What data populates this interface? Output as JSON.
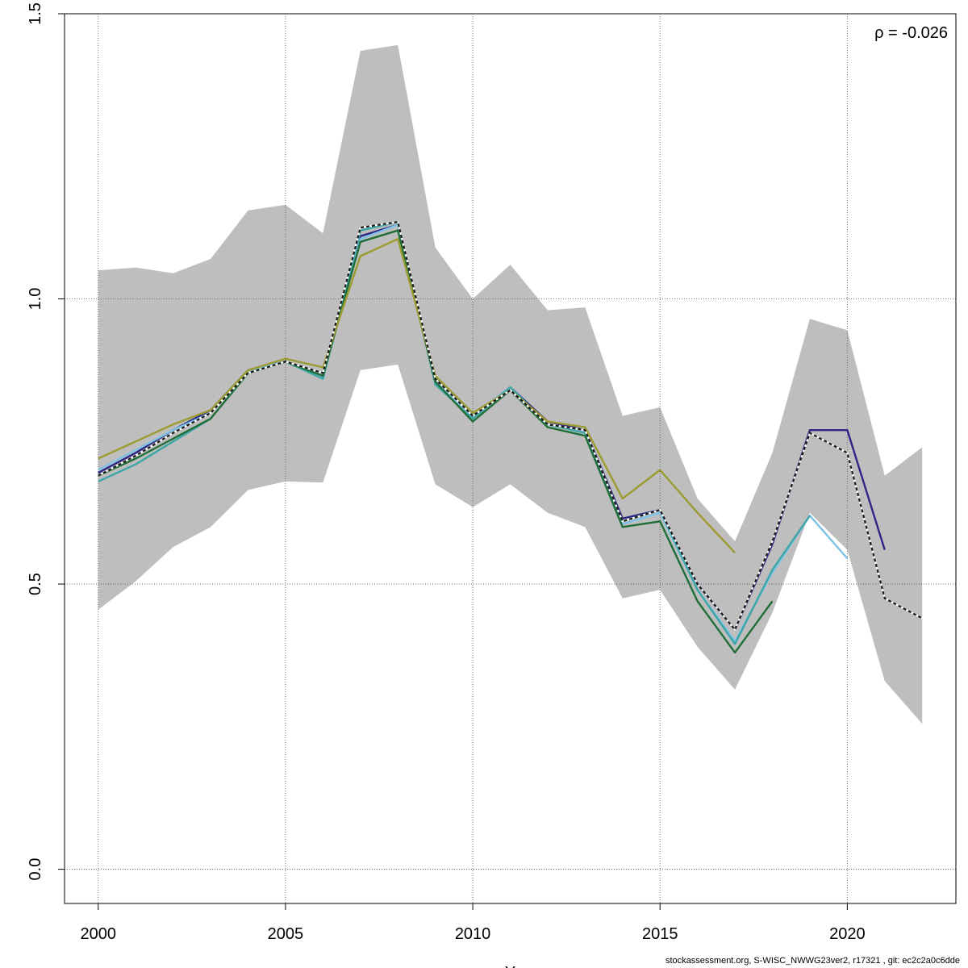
{
  "chart_data": {
    "type": "line",
    "title": "",
    "xlabel": "Y",
    "ylabel": "",
    "xlim": [
      1999.1,
      2022.9
    ],
    "ylim": [
      -0.06,
      1.5
    ],
    "x_ticks": [
      2000,
      2005,
      2010,
      2015,
      2020
    ],
    "y_ticks": [
      0.0,
      0.5,
      1.0,
      1.5
    ],
    "x_tick_labels": [
      "2000",
      "2005",
      "2010",
      "2015",
      "2020"
    ],
    "y_tick_labels": [
      "0.0",
      "0.5",
      "1.0",
      "1.5"
    ],
    "grid": true,
    "annotation": "ρ = -0.026",
    "band": {
      "x": [
        2000,
        2001,
        2002,
        2003,
        2004,
        2005,
        2006,
        2007,
        2008,
        2009,
        2010,
        2011,
        2012,
        2013,
        2014,
        2015,
        2016,
        2017,
        2018,
        2019,
        2020,
        2021,
        2022
      ],
      "upper": [
        1.05,
        1.055,
        1.045,
        1.07,
        1.155,
        1.165,
        1.115,
        1.435,
        1.445,
        1.09,
        1.0,
        1.06,
        0.98,
        0.985,
        0.795,
        0.81,
        0.65,
        0.575,
        0.73,
        0.965,
        0.945,
        0.69,
        0.74
      ],
      "lower": [
        0.455,
        0.505,
        0.565,
        0.6,
        0.665,
        0.68,
        0.678,
        0.875,
        0.885,
        0.675,
        0.635,
        0.675,
        0.625,
        0.6,
        0.475,
        0.49,
        0.39,
        0.315,
        0.45,
        0.625,
        0.56,
        0.33,
        0.255
      ]
    },
    "series": [
      {
        "color": "#1a1a1a",
        "dashed": true,
        "x": [
          2000,
          2001,
          2002,
          2003,
          2004,
          2005,
          2006,
          2007,
          2008,
          2009,
          2010,
          2011,
          2012,
          2013,
          2014,
          2015,
          2016,
          2017,
          2018,
          2019,
          2020,
          2021,
          2022
        ],
        "values": [
          0.69,
          0.725,
          0.765,
          0.8,
          0.87,
          0.89,
          0.87,
          1.125,
          1.135,
          0.86,
          0.795,
          0.84,
          0.78,
          0.77,
          0.61,
          0.63,
          0.5,
          0.42,
          0.575,
          0.765,
          0.73,
          0.475,
          0.44
        ]
      },
      {
        "color": "#2e2585",
        "dashed": false,
        "x": [
          2000,
          2001,
          2002,
          2003,
          2004,
          2005,
          2006,
          2007,
          2008,
          2009,
          2010,
          2011,
          2012,
          2013,
          2014,
          2015,
          2016,
          2017,
          2018,
          2019,
          2020,
          2021
        ],
        "values": [
          0.695,
          0.73,
          0.77,
          0.805,
          0.875,
          0.89,
          0.865,
          1.11,
          1.13,
          0.86,
          0.795,
          0.845,
          0.785,
          0.77,
          0.615,
          0.63,
          0.5,
          0.42,
          0.57,
          0.77,
          0.77,
          0.56
        ]
      },
      {
        "color": "#7ec3e6",
        "dashed": false,
        "x": [
          2000,
          2001,
          2002,
          2003,
          2004,
          2005,
          2006,
          2007,
          2008,
          2009,
          2010,
          2011,
          2012,
          2013,
          2014,
          2015,
          2016,
          2017,
          2018,
          2019,
          2020
        ],
        "values": [
          0.7,
          0.735,
          0.77,
          0.8,
          0.875,
          0.89,
          0.862,
          1.105,
          1.13,
          0.855,
          0.795,
          0.845,
          0.78,
          0.765,
          0.605,
          0.625,
          0.49,
          0.4,
          0.52,
          0.62,
          0.545
        ]
      },
      {
        "color": "#3ca6a6",
        "dashed": false,
        "x": [
          2000,
          2001,
          2002,
          2003,
          2004,
          2005,
          2006,
          2007,
          2008,
          2009,
          2010,
          2011,
          2012,
          2013,
          2014,
          2015,
          2016,
          2017,
          2018,
          2019
        ],
        "values": [
          0.68,
          0.71,
          0.75,
          0.79,
          0.87,
          0.89,
          0.86,
          1.12,
          1.135,
          0.85,
          0.79,
          0.845,
          0.78,
          0.765,
          0.61,
          0.63,
          0.49,
          0.395,
          0.525,
          0.62
        ]
      },
      {
        "color": "#1f6e38",
        "dashed": false,
        "x": [
          2000,
          2001,
          2002,
          2003,
          2004,
          2005,
          2006,
          2007,
          2008,
          2009,
          2010,
          2011,
          2012,
          2013,
          2014,
          2015,
          2016,
          2017,
          2018
        ],
        "values": [
          0.69,
          0.72,
          0.755,
          0.79,
          0.87,
          0.89,
          0.865,
          1.1,
          1.12,
          0.855,
          0.785,
          0.84,
          0.775,
          0.76,
          0.6,
          0.61,
          0.47,
          0.38,
          0.47
        ]
      },
      {
        "color": "#9b9b30",
        "dashed": false,
        "x": [
          2000,
          2001,
          2002,
          2003,
          2004,
          2005,
          2006,
          2007,
          2008,
          2009,
          2010,
          2011,
          2012,
          2013,
          2014,
          2015,
          2016,
          2017
        ],
        "values": [
          0.72,
          0.75,
          0.78,
          0.805,
          0.875,
          0.895,
          0.88,
          1.075,
          1.105,
          0.865,
          0.8,
          0.84,
          0.785,
          0.775,
          0.65,
          0.7,
          0.625,
          0.555
        ]
      }
    ]
  },
  "footer_text": "stockassessment.org, S-WISC_NWWG23ver2, r17321 , git: ec2c2a0c6dde"
}
